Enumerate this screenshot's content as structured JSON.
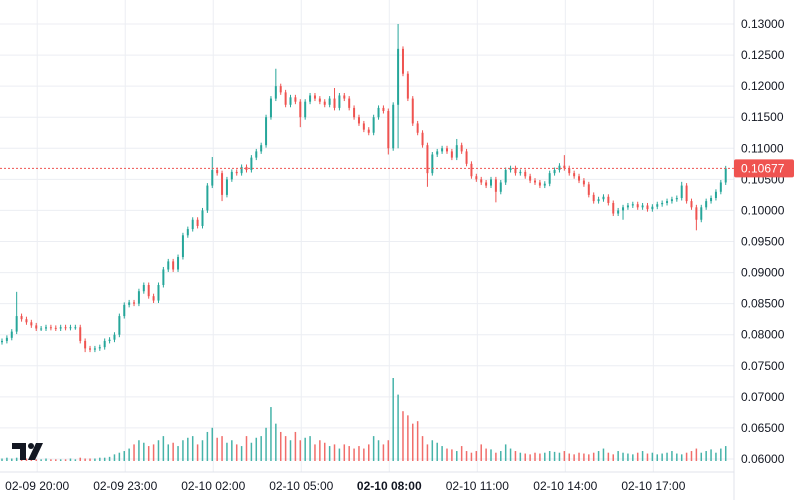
{
  "chart_data": {
    "type": "candlestick",
    "interval_minutes": 10,
    "first_open": 0.0788,
    "open_rule": "open equals previous close",
    "default_wick": 0.0004,
    "close": [
      0.079,
      0.0795,
      0.0805,
      0.083,
      0.0825,
      0.082,
      0.0815,
      0.081,
      0.081,
      0.0812,
      0.0811,
      0.081,
      0.0812,
      0.0811,
      0.0812,
      0.0812,
      0.079,
      0.0778,
      0.0776,
      0.0778,
      0.078,
      0.079,
      0.0792,
      0.08,
      0.083,
      0.0848,
      0.0852,
      0.085,
      0.087,
      0.088,
      0.0862,
      0.0855,
      0.088,
      0.0905,
      0.0918,
      0.0905,
      0.0925,
      0.096,
      0.097,
      0.0985,
      0.0975,
      0.1,
      0.104,
      0.1065,
      0.106,
      0.1025,
      0.105,
      0.1062,
      0.106,
      0.107,
      0.1065,
      0.1085,
      0.1095,
      0.1105,
      0.115,
      0.118,
      0.12,
      0.119,
      0.117,
      0.1182,
      0.1175,
      0.115,
      0.1175,
      0.1185,
      0.118,
      0.1175,
      0.117,
      0.118,
      0.1165,
      0.1185,
      0.118,
      0.1165,
      0.115,
      0.114,
      0.113,
      0.1125,
      0.115,
      0.1165,
      0.116,
      0.11,
      0.117,
      0.126,
      0.122,
      0.118,
      0.114,
      0.1125,
      0.1105,
      0.106,
      0.109,
      0.1095,
      0.11,
      0.1095,
      0.1085,
      0.1105,
      0.1095,
      0.1075,
      0.1055,
      0.105,
      0.1045,
      0.104,
      0.105,
      0.103,
      0.1045,
      0.1065,
      0.1068,
      0.106,
      0.1062,
      0.1055,
      0.1048,
      0.1045,
      0.104,
      0.1043,
      0.106,
      0.1065,
      0.1072,
      0.1068,
      0.106,
      0.1055,
      0.1048,
      0.1042,
      0.1025,
      0.1015,
      0.1018,
      0.1022,
      0.1012,
      0.0995,
      0.1,
      0.1005,
      0.1008,
      0.101,
      0.1005,
      0.1008,
      0.1002,
      0.1006,
      0.101,
      0.1012,
      0.1015,
      0.1018,
      0.102,
      0.104,
      0.1015,
      0.1005,
      0.0985,
      0.1005,
      0.1015,
      0.102,
      0.103,
      0.1045,
      0.10677
    ],
    "wick_extremes": {
      "3": {
        "high": 0.0869
      },
      "17": {
        "low": 0.0772
      },
      "43": {
        "high": 0.1086
      },
      "45": {
        "low": 0.1015
      },
      "56": {
        "high": 0.1228
      },
      "61": {
        "low": 0.1134
      },
      "68": {
        "high": 0.1197
      },
      "79": {
        "low": 0.109
      },
      "81": {
        "high": 0.13,
        "low": 0.11
      },
      "87": {
        "low": 0.1038
      },
      "93": {
        "high": 0.1115
      },
      "101": {
        "low": 0.1013
      },
      "115": {
        "high": 0.1089
      },
      "127": {
        "low": 0.0985
      },
      "139": {
        "high": 0.1046
      },
      "142": {
        "low": 0.0968
      }
    },
    "volume": [
      3,
      4,
      3,
      4,
      5,
      3,
      3,
      2,
      2,
      3,
      2,
      2,
      2,
      2,
      3,
      2,
      4,
      3,
      3,
      3,
      4,
      4,
      5,
      8,
      10,
      12,
      15,
      20,
      25,
      22,
      18,
      20,
      25,
      30,
      20,
      22,
      18,
      25,
      28,
      30,
      20,
      25,
      35,
      40,
      28,
      30,
      22,
      25,
      20,
      18,
      30,
      22,
      28,
      30,
      40,
      65,
      45,
      35,
      30,
      25,
      35,
      25,
      28,
      30,
      20,
      25,
      22,
      18,
      20,
      15,
      20,
      18,
      15,
      18,
      15,
      20,
      30,
      25,
      20,
      25,
      100,
      80,
      60,
      55,
      45,
      48,
      30,
      20,
      25,
      22,
      18,
      15,
      14,
      12,
      18,
      12,
      10,
      12,
      20,
      15,
      14,
      10,
      12,
      20,
      15,
      12,
      10,
      9,
      8,
      10,
      9,
      10,
      12,
      11,
      10,
      12,
      9,
      8,
      10,
      9,
      8,
      10,
      12,
      15,
      10,
      8,
      12,
      10,
      9,
      8,
      10,
      12,
      9,
      10,
      8,
      9,
      10,
      12,
      9,
      8,
      10,
      12,
      15,
      10,
      12,
      14,
      10,
      15,
      18
    ],
    "ylim": [
      0.06,
      0.13
    ],
    "price_ticks": [
      "0.13000",
      "0.12500",
      "0.12000",
      "0.11500",
      "0.11000",
      "0.10500",
      "0.10000",
      "0.09500",
      "0.09000",
      "0.08500",
      "0.08000",
      "0.07500",
      "0.07000",
      "0.06500",
      "0.06000"
    ],
    "time_ticks": [
      {
        "label": "02-09 20:00",
        "index": 7.2
      },
      {
        "label": "02-09 23:00",
        "index": 25.2
      },
      {
        "label": "02-10 02:00",
        "index": 43.2
      },
      {
        "label": "02-10 05:00",
        "index": 61.2
      },
      {
        "label": "02-10 08:00",
        "index": 79.2,
        "bold": true
      },
      {
        "label": "02-10 11:00",
        "index": 97.2
      },
      {
        "label": "02-10 14:00",
        "index": 115.2
      },
      {
        "label": "02-10 17:00",
        "index": 133.2
      }
    ],
    "last_price": "0.10677",
    "last_price_value": 0.10677,
    "grid": true,
    "colors": {
      "up": "#26a69a",
      "down": "#ef5350",
      "grid": "#eceef3",
      "last": "#ef5350"
    }
  },
  "logo": {
    "text": "TV"
  }
}
